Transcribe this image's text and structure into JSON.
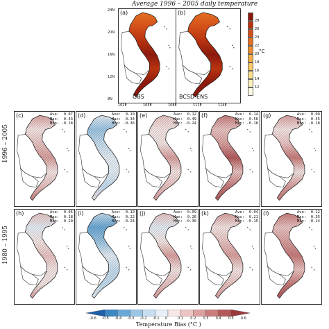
{
  "title": "Average 1996 – 2005 daily temperature",
  "top_panels": [
    {
      "label": "(a)",
      "name": "OBS"
    },
    {
      "label": "(b)",
      "name": "BCSD-ENS"
    }
  ],
  "lat_ticks": [
    "24N",
    "20N",
    "16N",
    "12N",
    "8N"
  ],
  "lon_ticks": [
    "102E",
    "105E",
    "108E",
    "111E",
    "114E"
  ],
  "temp_colorbar": {
    "unit": "°C",
    "ticks": [
      "28",
      "26",
      "24",
      "22",
      "20",
      "18",
      "16",
      "14",
      "12"
    ],
    "colors": [
      "#8b1a0e",
      "#b8330f",
      "#d4501a",
      "#e36f22",
      "#ef8e30",
      "#f5ad45",
      "#f9c965",
      "#fbe08f",
      "#fdf0bc",
      "#fffae4"
    ]
  },
  "rows": [
    {
      "label": "1996 – 2005",
      "panels": [
        {
          "label": "(c)",
          "ave": "0.07",
          "max": "0.43",
          "min": "-0.18",
          "bias": 0.15
        },
        {
          "label": "(d)",
          "ave": "0.10",
          "max": "0.34",
          "min": "-0.36",
          "bias": -0.2
        },
        {
          "label": "(e)",
          "ave": "0.12",
          "max": "0.49",
          "min": "-0.24",
          "bias": 0.1
        },
        {
          "label": "(f)",
          "ave": "0.14",
          "max": "0.56",
          "min": "-0.18",
          "bias": 0.3
        },
        {
          "label": "(g)",
          "ave": "0.09",
          "max": "0.45",
          "min": "-0.18",
          "bias": 0.2
        }
      ]
    },
    {
      "label": "1980 – 1995",
      "panels": [
        {
          "label": "(h)",
          "ave": "0.05",
          "max": "0.18",
          "min": "-0.20",
          "bias": 0.05
        },
        {
          "label": "(i)",
          "ave": "0.10",
          "max": "0.22",
          "min": "-0.24",
          "bias": -0.25
        },
        {
          "label": "(j)",
          "ave": "0.09",
          "max": "0.26",
          "min": "-0.30",
          "bias": 0.08
        },
        {
          "label": "(k)",
          "ave": "0.04",
          "max": "0.21",
          "min": "-0.15",
          "bias": 0.12
        },
        {
          "label": "(l)",
          "ave": "0.12",
          "max": "0.35",
          "min": "-0.14",
          "bias": 0.28
        }
      ]
    }
  ],
  "stat_labels": {
    "ave": "Ave:",
    "max": "Max:",
    "min": "Min:"
  },
  "bias_colorbar": {
    "title": "Temperature Bias (°C )",
    "ticks": [
      "-0.6",
      "-0.5",
      "-0.4",
      "-0.3",
      "-0.2",
      "-0.1",
      "0",
      "0.1",
      "0.2",
      "0.3",
      "0.4",
      "0.5",
      "0.6"
    ],
    "colors": [
      "#1f5fa8",
      "#3c86c2",
      "#6aa8d5",
      "#9bc6e4",
      "#c6def0",
      "#e6eff7",
      "#f6e7e6",
      "#ebc5c3",
      "#dba19f",
      "#c97c7b",
      "#b4595a",
      "#9a3a3c"
    ]
  }
}
